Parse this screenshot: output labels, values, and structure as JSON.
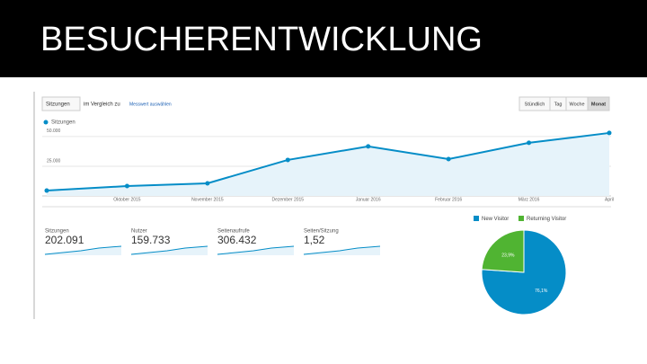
{
  "title": "BESUCHERENTWICKLUNG",
  "toolbar": {
    "metric": "Sitzungen",
    "compare": "im Vergleich zu",
    "select": "Messwert auswählen",
    "buttons": [
      "Stündlich",
      "Tag",
      "Woche",
      "Monat"
    ]
  },
  "chart_data": [
    {
      "type": "line",
      "categories": [
        null,
        "Oktober 2015",
        "November 2015",
        "Dezember 2015",
        "Januar 2016",
        "Februar 2016",
        "März 2016",
        "April"
      ],
      "series": [
        {
          "name": "Sitzungen",
          "color": "#058dc7",
          "values": [
            4500,
            8300,
            10600,
            30300,
            41700,
            31000,
            44700,
            53000
          ]
        }
      ],
      "ylim": [
        0,
        59000
      ],
      "yticks": [
        {
          "value": 25000,
          "label": "25.000"
        },
        {
          "value": 50000,
          "label": "50.000"
        }
      ],
      "grid": true
    },
    {
      "type": "pie",
      "categories": [
        "New Visitor",
        "Returning Visitor"
      ],
      "values": [
        76.1,
        23.9
      ],
      "value_labels": [
        "76,1%",
        "23,9%"
      ],
      "colors": [
        "#058dc7",
        "#50b432"
      ]
    }
  ],
  "metrics": [
    {
      "label": "Sitzungen",
      "value": "202.091"
    },
    {
      "label": "Nutzer",
      "value": "159.733"
    },
    {
      "label": "Seitenaufrufe",
      "value": "306.432"
    },
    {
      "label": "Seiten/Sitzung",
      "value": "1,52"
    }
  ]
}
